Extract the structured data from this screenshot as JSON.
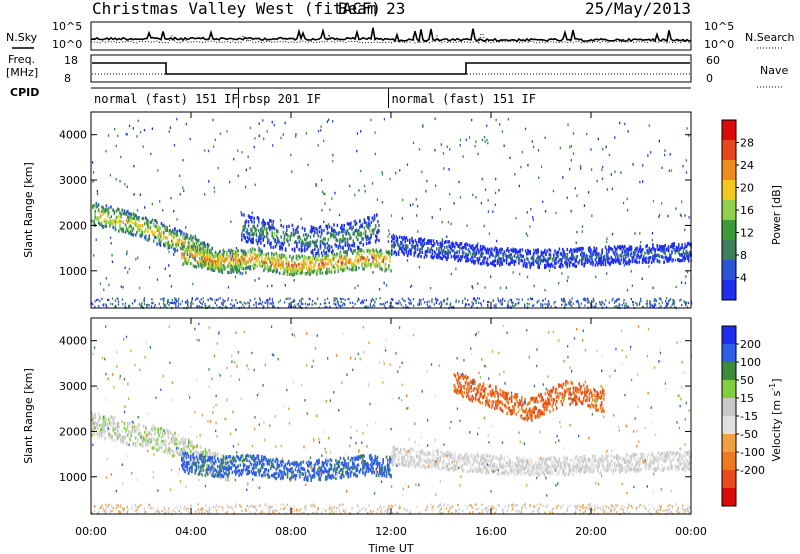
{
  "header": {
    "station": "Christmas Valley West (fitACF)",
    "beam": "Beam 23",
    "date": "25/May/2013"
  },
  "strips": {
    "nsky_label": "N.Sky",
    "nsearch_label": "N.Search",
    "nsky_ticks": [
      "10^5",
      "10^0"
    ],
    "freq_label_line1": "Freq.",
    "freq_label_line2": "[MHz]",
    "freq_ticks": [
      "18",
      "8"
    ],
    "nave_ticks": [
      "60",
      "0"
    ],
    "nave_label": "Nave",
    "cpid_label": "CPID"
  },
  "cpid_modes": [
    {
      "label": "normal (fast) 151 IF",
      "start": 0,
      "end": 5.9
    },
    {
      "label": "rbsp 201 IF",
      "start": 5.9,
      "end": 11.9
    },
    {
      "label": "normal (fast) 151 IF",
      "start": 11.9,
      "end": 24
    }
  ],
  "colors": {
    "power": [
      "#1f2ff0",
      "#2a54d6",
      "#3c7f5a",
      "#3d9a3a",
      "#8fd14a",
      "#f0c81e",
      "#f08c1e",
      "#e8461e",
      "#dd0a0a"
    ],
    "velocity": [
      "#1f2ff0",
      "#2f5fe6",
      "#3c8a3c",
      "#7fcf3f",
      "#c8c8c8",
      "#e0e0e0",
      "#f0a040",
      "#ee7a20",
      "#e84a1a",
      "#dd0a0a"
    ]
  },
  "chart_data": [
    {
      "type": "heatmap",
      "ylabel": "Slant Range [km]",
      "xlabel": "Time UT",
      "x_ticks": [
        "00:00",
        "04:00",
        "08:00",
        "12:00",
        "16:00",
        "20:00",
        "00:00"
      ],
      "x_tick_hours": [
        0,
        4,
        8,
        12,
        16,
        20,
        24
      ],
      "xlim": [
        0,
        24
      ],
      "ylim": [
        180,
        4500
      ],
      "y_ticks": [
        1000,
        2000,
        3000,
        4000
      ],
      "colorbar": {
        "label": "Power [dB]",
        "range": [
          0,
          32
        ],
        "ticks": [
          4,
          8,
          12,
          16,
          20,
          24,
          28
        ]
      },
      "echo_bands": [
        {
          "t": [
            0,
            1.5,
            2.5,
            3.4,
            4.2,
            5.0,
            6.2
          ],
          "r": [
            2300,
            2100,
            1900,
            1700,
            1500,
            1250,
            1200
          ],
          "w": 250,
          "level": 20
        },
        {
          "t": [
            3.6,
            5.0,
            6.5,
            8.0,
            9.5,
            11.0,
            12.0
          ],
          "r": [
            1400,
            1250,
            1300,
            1150,
            1200,
            1300,
            1250
          ],
          "w": 220,
          "level": 24
        },
        {
          "t": [
            6.0,
            7.5,
            9.0,
            10.5,
            11.5
          ],
          "r": [
            2000,
            1800,
            1700,
            1800,
            2000
          ],
          "w": 300,
          "level": 12
        },
        {
          "t": [
            12.0,
            14.0,
            16.0,
            18.0,
            20.0,
            22.0,
            24.0
          ],
          "r": [
            1600,
            1500,
            1350,
            1300,
            1350,
            1400,
            1450
          ],
          "w": 200,
          "level": 8
        }
      ]
    },
    {
      "type": "heatmap",
      "ylabel": "Slant Range [km]",
      "xlabel": "Time UT",
      "x_ticks": [
        "00:00",
        "04:00",
        "08:00",
        "12:00",
        "16:00",
        "20:00",
        "00:00"
      ],
      "x_tick_hours": [
        0,
        4,
        8,
        12,
        16,
        20,
        24
      ],
      "xlim": [
        0,
        24
      ],
      "ylim": [
        180,
        4500
      ],
      "y_ticks": [
        1000,
        2000,
        3000,
        4000
      ],
      "colorbar": {
        "label": "Velocity [m s^-1]",
        "range": [
          -250,
          250
        ],
        "ticks": [
          200,
          100,
          50,
          15,
          -15,
          -50,
          -100,
          -200
        ]
      },
      "echo_bands": [
        {
          "t": [
            0,
            1.5,
            2.5,
            3.5,
            4.5,
            5.5
          ],
          "r": [
            2200,
            2000,
            1900,
            1700,
            1400,
            1200
          ],
          "w": 260,
          "velocity": 0
        },
        {
          "t": [
            3.6,
            5.0,
            6.5,
            8.0,
            9.5,
            11.0,
            12.0
          ],
          "r": [
            1350,
            1250,
            1300,
            1150,
            1200,
            1300,
            1250
          ],
          "w": 220,
          "velocity": 120
        },
        {
          "t": [
            14.5,
            16.0,
            17.5,
            19.0,
            20.5
          ],
          "r": [
            3100,
            2800,
            2500,
            2900,
            2700
          ],
          "w": 250,
          "velocity": -200
        },
        {
          "t": [
            12.0,
            14.0,
            16.0,
            18.0,
            20.0,
            22.0,
            24.0
          ],
          "r": [
            1500,
            1400,
            1300,
            1250,
            1300,
            1350,
            1400
          ],
          "w": 200,
          "velocity": -15
        }
      ]
    }
  ]
}
